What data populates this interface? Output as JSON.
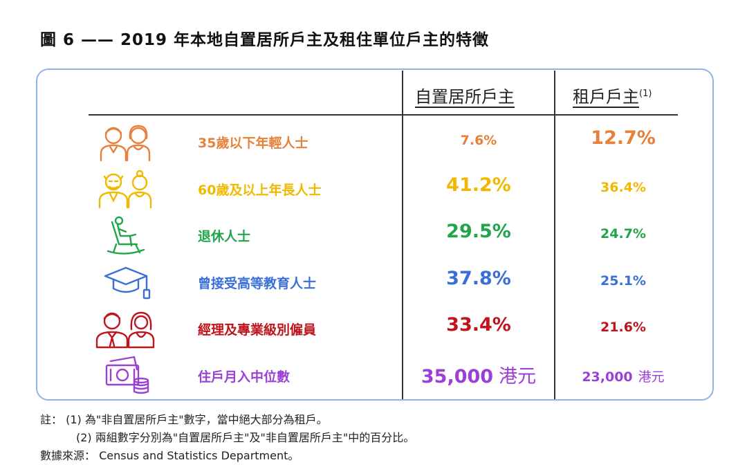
{
  "title": "圖 6 —— 2019 年本地自置居所戶主及租住單位戶主的特徵",
  "chart_data": {
    "type": "table",
    "columns": [
      {
        "label": "自置居所戶主",
        "note": ""
      },
      {
        "label": "租戶戶主",
        "note": "(1)"
      }
    ],
    "rows": [
      {
        "label": "35歲以下年輕人士",
        "icon": "young-people-icon",
        "color": "#e8803a",
        "owner": "7.6%",
        "renter": "12.7%",
        "emphasis": "renter"
      },
      {
        "label": "60歲及以上年長人士",
        "icon": "elderly-people-icon",
        "color": "#f2b800",
        "owner": "41.2%",
        "renter": "36.4%",
        "emphasis": "owner"
      },
      {
        "label": "退休人士",
        "icon": "rocking-chair-icon",
        "color": "#1fa64a",
        "owner": "29.5%",
        "renter": "24.7%",
        "emphasis": "owner"
      },
      {
        "label": "曾接受高等教育人士",
        "icon": "graduation-cap-icon",
        "color": "#3a6fd8",
        "owner": "37.8%",
        "renter": "25.1%",
        "emphasis": "owner"
      },
      {
        "label": "經理及專業級別僱員",
        "icon": "professionals-icon",
        "color": "#c0131b",
        "owner": "33.4%",
        "renter": "21.6%",
        "emphasis": "owner"
      },
      {
        "label": "住戶月入中位數",
        "icon": "money-icon",
        "color": "#9b3fd6",
        "owner": "35,000",
        "owner_unit": "港元",
        "renter": "23,000",
        "renter_unit": "港元",
        "emphasis": "owner"
      }
    ]
  },
  "notes": {
    "prefix": "註：",
    "note1": "(1)  為\"非自置居所戶主\"數字，當中絕大部分為租戶。",
    "note2": "(2)  兩組數字分別為\"自置居所戶主\"及\"非自置居所戶主\"中的百分比。",
    "source_label": "數據來源：",
    "source": "Census and Statistics Department。"
  }
}
